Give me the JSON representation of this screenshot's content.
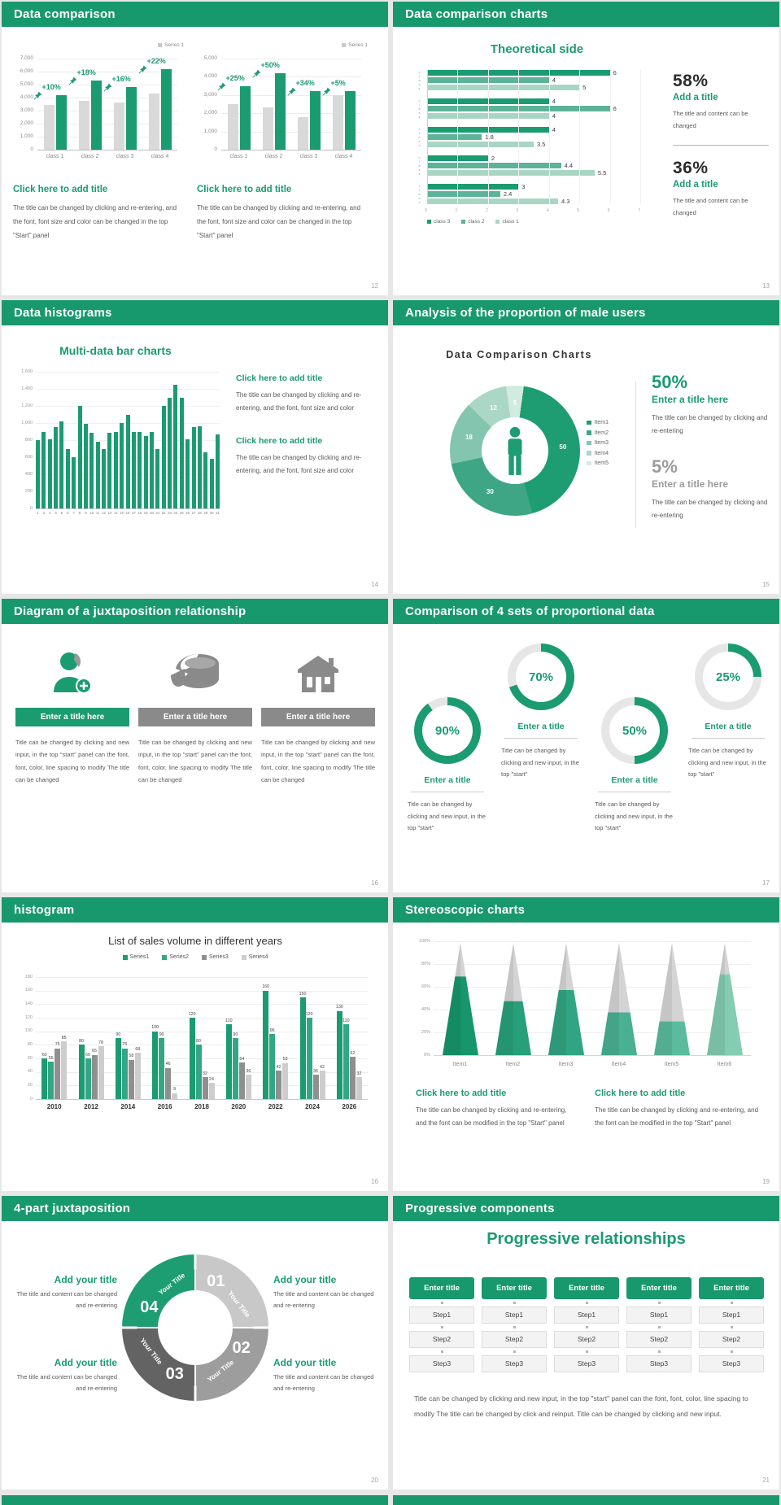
{
  "accent": "#18996d",
  "slides": [
    {
      "header": "Data comparison",
      "page_num": "12",
      "caption_title": "Click here to add title",
      "caption_body": "The title can be changed by clicking and re-entering, and the font, font size and color can be changed in the top \"Start\" panel",
      "chart_data": [
        {
          "type": "bar",
          "legend": "Series 1",
          "categories": [
            "class 1",
            "class 2",
            "class 3",
            "class 4"
          ],
          "series": [
            {
              "name": "base",
              "color": "#d9d9d9",
              "values": [
                3450,
                3750,
                3650,
                4300
              ]
            },
            {
              "name": "Series 1",
              "color": "#1b9b70",
              "values": [
                4200,
                5300,
                4800,
                6200
              ]
            }
          ],
          "growth_labels": [
            "+10%",
            "+18%",
            "+16%",
            "+22%"
          ],
          "ylim": [
            0,
            7000
          ],
          "ystep": 1000
        },
        {
          "type": "bar",
          "legend": "Series 1",
          "categories": [
            "class 1",
            "class 2",
            "class 3",
            "class 4"
          ],
          "series": [
            {
              "name": "base",
              "color": "#d9d9d9",
              "values": [
                2500,
                2300,
                1800,
                3000
              ]
            },
            {
              "name": "Series 1",
              "color": "#1b9b70",
              "values": [
                3500,
                4200,
                3200,
                3200
              ]
            }
          ],
          "growth_labels": [
            "+25%",
            "+50%",
            "+34%",
            "+5%"
          ],
          "ylim": [
            0,
            5000
          ],
          "ystep": 1000
        }
      ]
    },
    {
      "header": "Data comparison charts",
      "page_num": "13",
      "chart_title": "Theoretical side",
      "chart_data": {
        "type": "bar",
        "orientation": "horizontal",
        "categories": [
          "class…",
          "class…",
          "class…",
          "class…",
          "class…"
        ],
        "series": [
          {
            "name": "class 3",
            "color": "#1b9b70",
            "values": [
              6,
              4,
              4,
              2,
              3
            ]
          },
          {
            "name": "class 2",
            "color": "#5db398",
            "values": [
              4,
              6,
              1.8,
              4.4,
              2.4
            ]
          },
          {
            "name": "class 1",
            "color": "#a9d6c4",
            "values": [
              5,
              4,
              3.5,
              5.5,
              4.3
            ]
          }
        ],
        "xlim": [
          0,
          7
        ]
      },
      "stats": [
        {
          "value": "58%",
          "title": "Add a title",
          "body": "The title and content can be changed"
        },
        {
          "value": "36%",
          "title": "Add a title",
          "body": "The title and content can be changed"
        }
      ]
    },
    {
      "header": "Data histograms",
      "page_num": "14",
      "chart_title": "Multi-data bar charts",
      "chart_data": {
        "type": "bar",
        "color": "#1b9b70",
        "ylim": [
          0,
          1600
        ],
        "ystep": 200,
        "categories": [
          1,
          2,
          3,
          4,
          5,
          6,
          7,
          8,
          9,
          10,
          11,
          12,
          13,
          14,
          15,
          16,
          17,
          18,
          19,
          20,
          21,
          22,
          23,
          24,
          25,
          26,
          27,
          28,
          29,
          30,
          31
        ],
        "values": [
          800,
          900,
          810,
          950,
          1020,
          700,
          600,
          1200,
          990,
          890,
          780,
          700,
          890,
          900,
          1000,
          1100,
          900,
          900,
          850,
          900,
          700,
          1200,
          1300,
          1450,
          1300,
          810,
          950,
          960,
          660,
          580,
          870
        ]
      },
      "blocks": [
        {
          "title": "Click here to add title",
          "body": "The title can be changed by clicking and re-entering, and the font, font size and color"
        },
        {
          "title": "Click here to add title",
          "body": "The title can be changed by clicking and re-entering, and the font, font size and color"
        }
      ]
    },
    {
      "header": "Analysis of the proportion of male users",
      "page_num": "15",
      "chart_title": "Data Comparison Charts",
      "chart_data": {
        "type": "pie",
        "labels": [
          "Item1",
          "Item2",
          "Item3",
          "Item4",
          "Item5"
        ],
        "values": [
          50,
          30,
          18,
          12,
          5
        ],
        "colors": [
          "#1e9c72",
          "#3fa685",
          "#83c5af",
          "#abd8c6",
          "#d2ebe0"
        ]
      },
      "stats": [
        {
          "value": "50%",
          "title": "Enter a title here",
          "body": "The title can be changed by clicking and re-entering",
          "color": "#1b9b70"
        },
        {
          "value": "5%",
          "title": "Enter a title here",
          "body": "The title can be changed by clicking and re-entering",
          "color": "#9b9b9b"
        }
      ]
    },
    {
      "header": "Diagram of a juxtaposition relationship",
      "page_num": "16",
      "columns": [
        {
          "icon": "person-add-icon",
          "title": "Enter a title here",
          "body": "Title can be changed by clicking and new input, in the top \"start\" panel can the font, font, color, line spacing to modify The title can be changed"
        },
        {
          "icon": "cake-chart-icon",
          "title": "Enter a title here",
          "body": "Title can be changed by clicking and new input, in the top \"start\" panel can the font, font, color, line spacing to modify The title can be changed"
        },
        {
          "icon": "building-icon",
          "title": "Enter a title here",
          "body": "Title can be changed by clicking and new input, in the top \"start\" panel can the font, font, color, line spacing to modify The title can be changed"
        }
      ]
    },
    {
      "header": "Comparison of 4 sets of proportional data",
      "page_num": "17",
      "rings": [
        {
          "percent": 90,
          "label": "90%",
          "title": "Enter a title",
          "body": "Title can be changed by clicking and new input, in the top \"start\""
        },
        {
          "percent": 70,
          "label": "70%",
          "title": "Enter a title",
          "body": "Title can be changed by clicking and new input, in the top \"start\""
        },
        {
          "percent": 50,
          "label": "50%",
          "title": "Enter a title",
          "body": "Title can be changed by clicking and new input, in the top \"start\""
        },
        {
          "percent": 25,
          "label": "25%",
          "title": "Enter a title",
          "body": "Title can be changed by clicking and new input, in the top \"start\""
        }
      ],
      "chart_data": {
        "type": "pie",
        "labels": [
          "90%",
          "70%",
          "50%",
          "25%"
        ],
        "values": [
          90,
          70,
          50,
          25
        ]
      }
    },
    {
      "header": "histogram",
      "page_num": "16",
      "chart_title": "List of sales volume in different years",
      "chart_data": {
        "type": "bar",
        "ylim": [
          0,
          180
        ],
        "ystep": 20,
        "categories": [
          "2010",
          "2012",
          "2014",
          "2016",
          "2018",
          "2020",
          "2022",
          "2024",
          "2026"
        ],
        "series": [
          {
            "name": "Series1",
            "color": "#1b9b70",
            "values": [
              60,
              80,
              90,
              100,
              120,
              110,
              160,
              150,
              130
            ]
          },
          {
            "name": "Series2",
            "color": "#33a686",
            "values": [
              55,
              60,
              75,
              90,
              80,
              90,
              96,
              120,
              110
            ]
          },
          {
            "name": "Series3",
            "color": "#8f8f8f",
            "values": [
              75,
              65,
              58,
              46,
              32,
              54,
              42,
              36,
              62
            ]
          },
          {
            "name": "Series4",
            "color": "#cdcdcd",
            "values": [
              85,
              78,
              68,
              9,
              24,
              36,
              53,
              42,
              32
            ]
          }
        ]
      }
    },
    {
      "header": "Stereoscopic charts",
      "page_num": "19",
      "chart_data": {
        "type": "bar",
        "unit": "%",
        "ylim": [
          0,
          100
        ],
        "ystep": 20,
        "categories": [
          "Item1",
          "Item2",
          "Item3",
          "Item4",
          "Item5",
          "Item6"
        ],
        "values": [
          70,
          48,
          58,
          38,
          30,
          72
        ],
        "colors": [
          "#17966b",
          "#27a07a",
          "#31a583",
          "#49b192",
          "#5bbb9d",
          "#84ccb2"
        ],
        "top_color": "#d4d4d4"
      },
      "blocks": [
        {
          "title": "Click here to add title",
          "body": "The title can be changed by clicking and re-entering, and the font can be modified in the top \"Start\" panel"
        },
        {
          "title": "Click here to add title",
          "body": "The title can be changed by clicking and re-entering, and the font can be modified in the top \"Start\" panel"
        }
      ]
    },
    {
      "header": "4-part juxtaposition",
      "page_num": "20",
      "wheel": {
        "segments": [
          {
            "num": "01",
            "label": "Your Title",
            "color": "#c8c8c8"
          },
          {
            "num": "02",
            "label": "Your Title",
            "color": "#9d9d9d"
          },
          {
            "num": "03",
            "label": "Your Title",
            "color": "#636363"
          },
          {
            "num": "04",
            "label": "Your Title",
            "color": "#1e9c72"
          }
        ]
      },
      "corners": [
        {
          "title": "Add your title",
          "body": "The title and content can be changed and re-entering"
        },
        {
          "title": "Add your title",
          "body": "The title and content can be changed and re-entering"
        },
        {
          "title": "Add your title",
          "body": "The title and content can be changed and re-entering"
        },
        {
          "title": "Add your title",
          "body": "The title and content can be changed and re-entering"
        }
      ]
    },
    {
      "header": "Progressive components",
      "page_num": "21",
      "title": "Progressive relationships",
      "column_title": "Enter title",
      "steps": [
        "Step1",
        "Step2",
        "Step3"
      ],
      "columns_count": 5,
      "body": "Title can be changed by clicking and new input, in the top \"start\" panel can the font, font, color, line spacing to modify The title can be changed by click and reinput. Title can be changed by clicking and new input."
    }
  ]
}
